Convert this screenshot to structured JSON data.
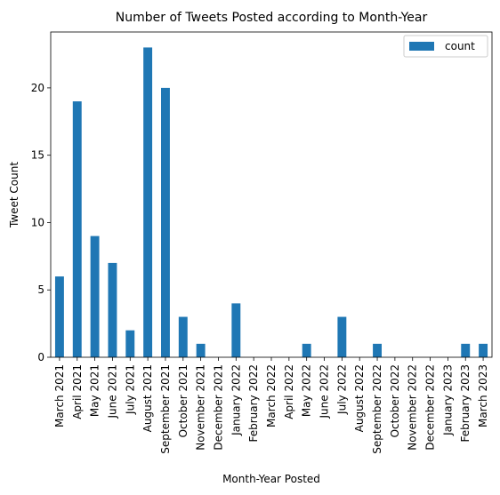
{
  "chart_data": {
    "type": "bar",
    "title": "Number of Tweets Posted according to Month-Year",
    "xlabel": "Month-Year Posted",
    "ylabel": "Tweet Count",
    "ylim": [
      0,
      24.15
    ],
    "yticks": [
      0,
      5,
      10,
      15,
      20
    ],
    "grid": false,
    "legend_position": "top-right",
    "colors": {
      "bar": "#1f77b4"
    },
    "categories": [
      "March 2021",
      "April 2021",
      "May 2021",
      "June 2021",
      "July 2021",
      "August 2021",
      "September 2021",
      "October 2021",
      "November 2021",
      "December 2021",
      "January 2022",
      "February 2022",
      "March 2022",
      "April 2022",
      "May 2022",
      "June 2022",
      "July 2022",
      "August 2022",
      "September 2022",
      "October 2022",
      "November 2022",
      "December 2022",
      "January 2023",
      "February 2023",
      "March 2023"
    ],
    "series": [
      {
        "name": "count",
        "values": [
          6,
          19,
          9,
          7,
          2,
          23,
          20,
          3,
          1,
          0,
          4,
          0,
          0,
          0,
          1,
          0,
          3,
          0,
          1,
          0,
          0,
          0,
          0,
          1,
          1
        ]
      }
    ]
  }
}
